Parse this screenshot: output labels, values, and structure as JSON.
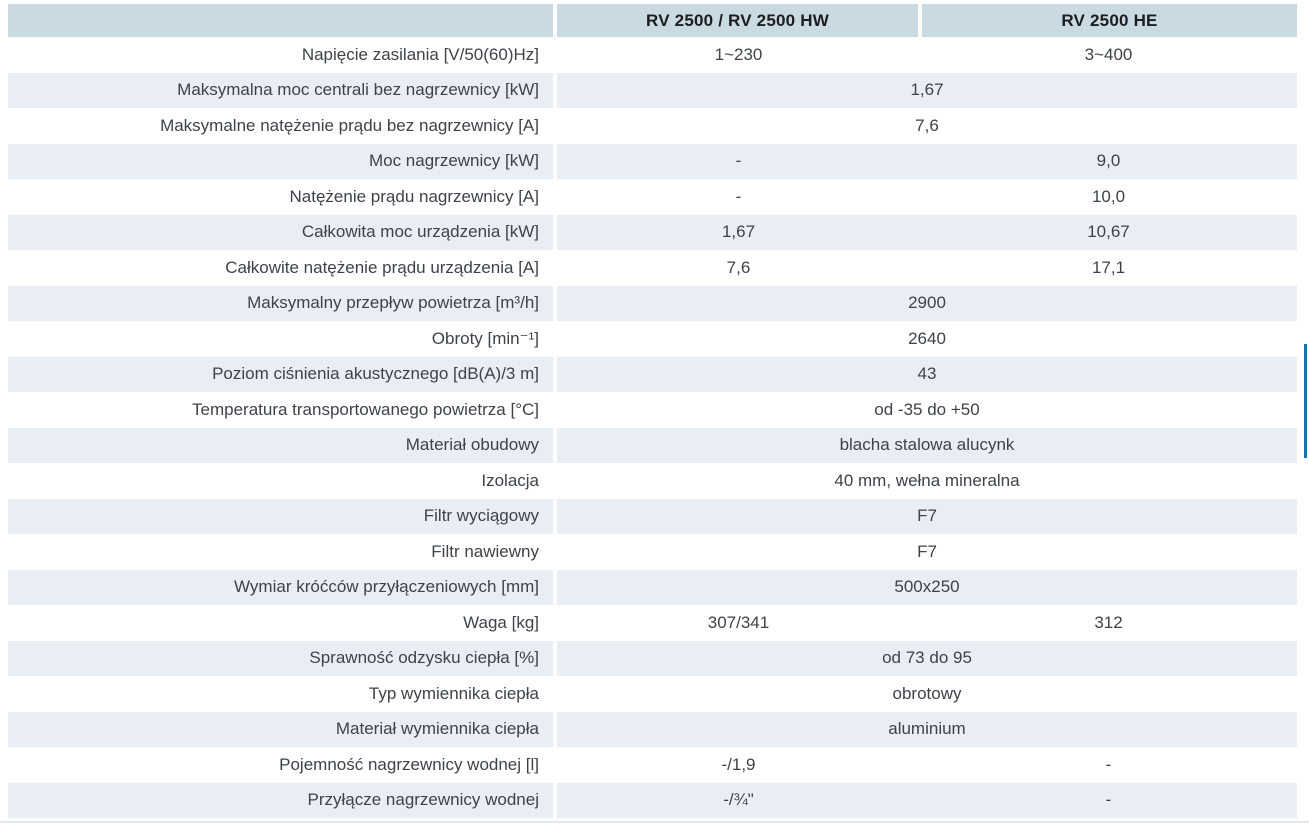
{
  "colors": {
    "header_bg": "#c9dae3",
    "row_alt_bg": "#e8eef4",
    "text": "#3d4349",
    "header_text": "#1d1d1f",
    "accent_bar": "#1273ad",
    "bottom_rule": "#e4e9ed"
  },
  "table": {
    "column_headers": [
      "RV 2500 / RV 2500 HW",
      "RV 2500 HE"
    ],
    "rows": [
      {
        "label": "Napięcie zasilania [V/50(60)Hz]",
        "values": [
          "1~230",
          "3~400"
        ]
      },
      {
        "label": "Maksymalna moc centrali bez nagrzewnicy [kW]",
        "values": [
          "1,67"
        ],
        "span": true
      },
      {
        "label": "Maksymalne natężenie prądu bez nagrzewnicy [A]",
        "values": [
          "7,6"
        ],
        "span": true
      },
      {
        "label": "Moc nagrzewnicy [kW]",
        "values": [
          "-",
          "9,0"
        ]
      },
      {
        "label": "Natężenie prądu nagrzewnicy [A]",
        "values": [
          "-",
          "10,0"
        ]
      },
      {
        "label": "Całkowita moc urządzenia [kW]",
        "values": [
          "1,67",
          "10,67"
        ]
      },
      {
        "label": "Całkowite natężenie prądu urządzenia [A]",
        "values": [
          "7,6",
          "17,1"
        ]
      },
      {
        "label": "Maksymalny przepływ powietrza [m³/h]",
        "values": [
          "2900"
        ],
        "span": true
      },
      {
        "label": "Obroty [min⁻¹]",
        "values": [
          "2640"
        ],
        "span": true
      },
      {
        "label": "Poziom ciśnienia akustycznego [dB(A)/3 m]",
        "values": [
          "43"
        ],
        "span": true
      },
      {
        "label": "Temperatura transportowanego powietrza [°C]",
        "values": [
          "od -35 do +50"
        ],
        "span": true
      },
      {
        "label": "Materiał obudowy",
        "values": [
          "blacha stalowa alucynk"
        ],
        "span": true
      },
      {
        "label": "Izolacja",
        "values": [
          "40 mm, wełna mineralna"
        ],
        "span": true
      },
      {
        "label": "Filtr wyciągowy",
        "values": [
          "F7"
        ],
        "span": true
      },
      {
        "label": "Filtr nawiewny",
        "values": [
          "F7"
        ],
        "span": true
      },
      {
        "label": "Wymiar króćców przyłączeniowych [mm]",
        "values": [
          "500x250"
        ],
        "span": true
      },
      {
        "label": "Waga [kg]",
        "values": [
          "307/341",
          "312"
        ]
      },
      {
        "label": "Sprawność odzysku ciepła [%]",
        "values": [
          "od 73 do 95"
        ],
        "span": true
      },
      {
        "label": "Typ wymiennika ciepła",
        "values": [
          "obrotowy"
        ],
        "span": true
      },
      {
        "label": "Materiał wymiennika ciepła",
        "values": [
          "aluminium"
        ],
        "span": true
      },
      {
        "label": "Pojemność nagrzewnicy wodnej [l]",
        "values": [
          "-/1,9",
          "-"
        ]
      },
      {
        "label": "Przyłącze nagrzewnicy wodnej",
        "values": [
          "-/¾\"",
          "-"
        ]
      }
    ]
  }
}
